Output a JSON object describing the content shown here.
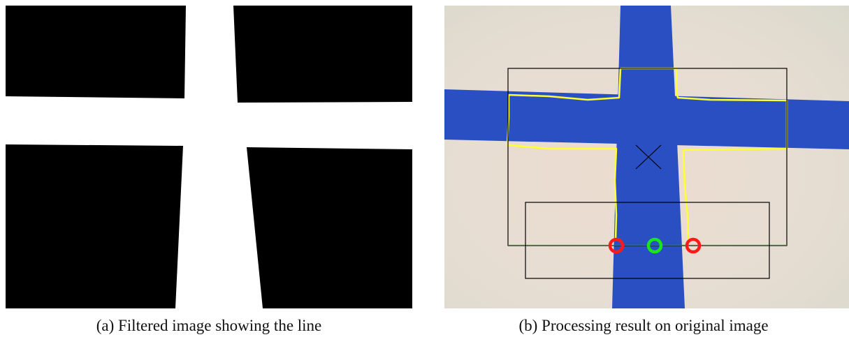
{
  "figure": {
    "panel_a": {
      "caption": "(a) Filtered image showing the line"
    },
    "panel_b": {
      "caption": "(b) Processing result on original image",
      "colors": {
        "line_tape": "#2a4fc2",
        "background": "#e8dcd0",
        "contour": "#ffff33",
        "edge_marker": "#ff1a1a",
        "center_marker": "#19e619",
        "box": "#000000",
        "centroid_cross": "#000000"
      }
    }
  }
}
